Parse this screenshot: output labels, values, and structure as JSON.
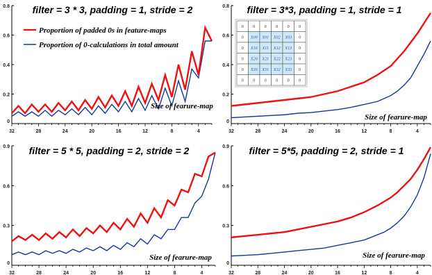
{
  "colors": {
    "red": "#ee1111",
    "blue": "#14389c",
    "inner_cell": "#cde9f8"
  },
  "legend": {
    "red": "Proportion of padded 0s in feature-maps",
    "blue": "Proportion of 0-calculations in total amount"
  },
  "inset": {
    "rows": [
      [
        "0",
        "0",
        "0",
        "0",
        "0",
        "0"
      ],
      [
        "0",
        "X00",
        "X01",
        "X02",
        "X03",
        "0"
      ],
      [
        "0",
        "X10",
        "X11",
        "X12",
        "X13",
        "0"
      ],
      [
        "0",
        "X20",
        "X21",
        "X22",
        "X23",
        "0"
      ],
      [
        "0",
        "X30",
        "X31",
        "X32",
        "X33",
        "0"
      ],
      [
        "0",
        "0",
        "0",
        "0",
        "0",
        "0"
      ]
    ]
  },
  "chart_data": [
    {
      "type": "line",
      "title": "filter = 3 * 3, padding = 1, stride = 2",
      "xlabel": "Size of fearure-map",
      "xlim": [
        32,
        2
      ],
      "ylim": [
        0,
        0.8
      ],
      "yticks": [
        "0",
        "0.2",
        "0.4",
        "0.6",
        "0.8"
      ],
      "xticks": [
        "32",
        "28",
        "24",
        "20",
        "16",
        "12",
        "8",
        "4"
      ],
      "x": [
        32,
        31,
        30,
        29,
        28,
        27,
        26,
        25,
        24,
        23,
        22,
        21,
        20,
        19,
        18,
        17,
        16,
        15,
        14,
        13,
        12,
        11,
        10,
        9,
        8,
        7,
        6,
        5,
        4,
        3,
        2
      ],
      "series": [
        {
          "name": "Proportion of padded 0s in feature-maps",
          "color": "red",
          "values": [
            0.07,
            0.12,
            0.07,
            0.13,
            0.08,
            0.13,
            0.08,
            0.14,
            0.09,
            0.15,
            0.09,
            0.16,
            0.1,
            0.18,
            0.11,
            0.19,
            0.12,
            0.22,
            0.12,
            0.25,
            0.14,
            0.27,
            0.16,
            0.33,
            0.18,
            0.4,
            0.23,
            0.49,
            0.33,
            0.65,
            0.56
          ]
        },
        {
          "name": "Proportion of 0-calculations in total amount",
          "color": "blue",
          "values": [
            0.05,
            0.08,
            0.05,
            0.08,
            0.05,
            0.09,
            0.05,
            0.09,
            0.06,
            0.1,
            0.06,
            0.11,
            0.06,
            0.12,
            0.07,
            0.13,
            0.08,
            0.15,
            0.08,
            0.17,
            0.09,
            0.19,
            0.1,
            0.24,
            0.12,
            0.29,
            0.15,
            0.37,
            0.31,
            0.56,
            0.56
          ]
        }
      ]
    },
    {
      "type": "line",
      "title": "filter = 3*3, padding = 1, stride = 1",
      "xlabel": "Size of fearure-map",
      "xlim": [
        32,
        2
      ],
      "ylim": [
        0,
        0.8
      ],
      "yticks": [
        "0",
        "0.2",
        "0.4",
        "0.6",
        "0.8"
      ],
      "xticks": [
        "32",
        "28",
        "24",
        "20",
        "16",
        "12",
        "8",
        "4"
      ],
      "x": [
        32,
        30,
        28,
        26,
        24,
        22,
        20,
        18,
        16,
        14,
        12,
        10,
        9,
        8,
        7,
        6,
        5,
        4,
        3,
        2
      ],
      "series": [
        {
          "color": "red",
          "values": [
            0.12,
            0.13,
            0.14,
            0.15,
            0.16,
            0.17,
            0.18,
            0.2,
            0.22,
            0.25,
            0.28,
            0.33,
            0.36,
            0.39,
            0.44,
            0.49,
            0.55,
            0.61,
            0.68,
            0.75
          ]
        },
        {
          "color": "blue",
          "values": [
            0.04,
            0.045,
            0.05,
            0.055,
            0.06,
            0.07,
            0.075,
            0.085,
            0.095,
            0.11,
            0.13,
            0.15,
            0.17,
            0.19,
            0.22,
            0.26,
            0.31,
            0.39,
            0.47,
            0.56
          ]
        }
      ]
    },
    {
      "type": "line",
      "title": "filter = 5 * 5, padding = 2, stride = 2",
      "xlabel": "Size of fearure-map",
      "xlim": [
        32,
        2
      ],
      "ylim": [
        0,
        0.9
      ],
      "yticks": [
        "0",
        "0.3",
        "0.6",
        "0.9"
      ],
      "xticks": [
        "32",
        "28",
        "24",
        "20",
        "16",
        "12",
        "8",
        "4"
      ],
      "x": [
        32,
        31,
        30,
        29,
        28,
        27,
        26,
        25,
        24,
        23,
        22,
        21,
        20,
        19,
        18,
        17,
        16,
        15,
        14,
        13,
        12,
        11,
        10,
        9,
        8,
        7,
        6,
        5,
        4,
        3,
        2
      ],
      "series": [
        {
          "color": "red",
          "values": [
            0.18,
            0.22,
            0.19,
            0.23,
            0.19,
            0.24,
            0.2,
            0.25,
            0.21,
            0.27,
            0.22,
            0.28,
            0.24,
            0.3,
            0.25,
            0.32,
            0.27,
            0.35,
            0.29,
            0.39,
            0.32,
            0.43,
            0.36,
            0.49,
            0.45,
            0.57,
            0.55,
            0.69,
            0.67,
            0.82,
            0.85
          ]
        },
        {
          "color": "blue",
          "values": [
            0.08,
            0.1,
            0.08,
            0.1,
            0.08,
            0.11,
            0.09,
            0.11,
            0.09,
            0.12,
            0.1,
            0.13,
            0.11,
            0.14,
            0.11,
            0.15,
            0.12,
            0.17,
            0.14,
            0.2,
            0.16,
            0.23,
            0.2,
            0.27,
            0.27,
            0.36,
            0.36,
            0.47,
            0.52,
            0.65,
            0.85
          ]
        }
      ]
    },
    {
      "type": "line",
      "title": "filter = 5*5, padding = 2, stride = 1",
      "xlabel": "Size of fearure-map",
      "xlim": [
        32,
        2
      ],
      "ylim": [
        0,
        0.9
      ],
      "yticks": [
        "0",
        "0.3",
        "0.6",
        "0.9"
      ],
      "xticks": [
        "32",
        "28",
        "24",
        "20",
        "16",
        "12",
        "8",
        "4"
      ],
      "x": [
        32,
        30,
        28,
        26,
        24,
        22,
        20,
        18,
        16,
        14,
        12,
        10,
        9,
        8,
        7,
        6,
        5,
        4,
        3,
        2
      ],
      "series": [
        {
          "color": "red",
          "values": [
            0.21,
            0.22,
            0.23,
            0.24,
            0.25,
            0.27,
            0.29,
            0.31,
            0.33,
            0.36,
            0.4,
            0.45,
            0.48,
            0.51,
            0.55,
            0.6,
            0.65,
            0.72,
            0.8,
            0.89
          ]
        },
        {
          "color": "blue",
          "values": [
            0.07,
            0.075,
            0.08,
            0.09,
            0.1,
            0.11,
            0.12,
            0.13,
            0.15,
            0.17,
            0.19,
            0.23,
            0.25,
            0.28,
            0.32,
            0.37,
            0.44,
            0.53,
            0.66,
            0.84
          ]
        }
      ]
    }
  ]
}
